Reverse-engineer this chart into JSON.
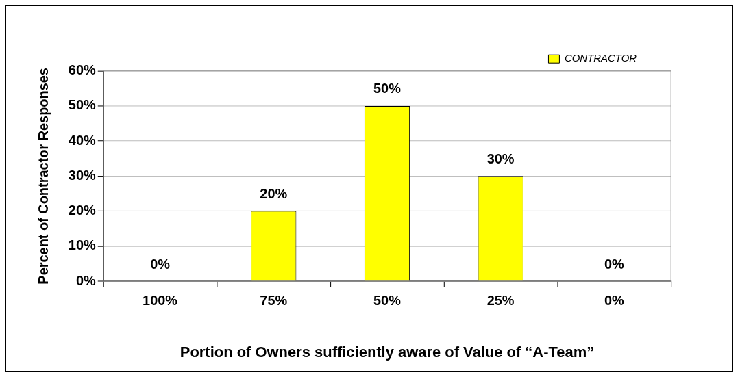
{
  "chart_data": {
    "type": "bar",
    "xlabel": "Portion of Owners sufficiently aware of Value of “A-Team”",
    "ylabel": "Percent of Contractor Responses",
    "categories": [
      "100%",
      "75%",
      "50%",
      "25%",
      "0%"
    ],
    "series": [
      {
        "name": "CONTRACTOR",
        "color": "#ffff00",
        "values": [
          0,
          20,
          50,
          30,
          0
        ],
        "value_labels": [
          "0%",
          "20%",
          "50%",
          "30%",
          "0%"
        ]
      }
    ],
    "ylim": [
      0,
      60
    ],
    "yticks": [
      {
        "value": 0,
        "label": "0%"
      },
      {
        "value": 10,
        "label": "10%"
      },
      {
        "value": 20,
        "label": "20%"
      },
      {
        "value": 30,
        "label": "30%"
      },
      {
        "value": 40,
        "label": "40%"
      },
      {
        "value": 50,
        "label": "50%"
      },
      {
        "value": 60,
        "label": "60%"
      }
    ],
    "grid": "y",
    "legend": "top right"
  }
}
